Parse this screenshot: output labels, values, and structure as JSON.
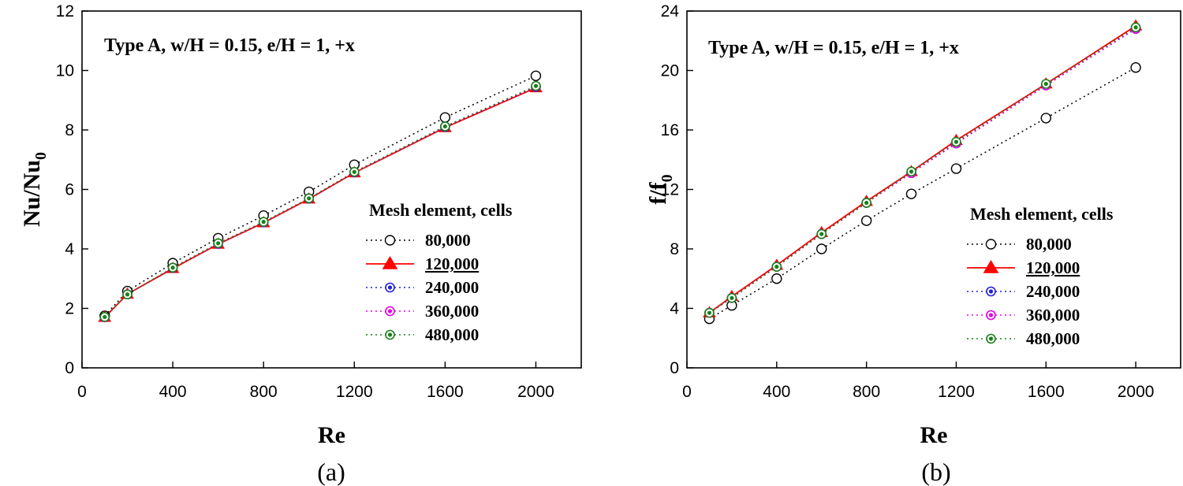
{
  "colors": {
    "s80k": "#000000",
    "s120k": "#ff0000",
    "s240k": "#1f1fd6",
    "s360k": "#e000e0",
    "s480k": "#1a7f1a"
  },
  "chart_data": [
    {
      "type": "line",
      "caption": "(a)",
      "annotation": "Type A, w/H = 0.15, e/H = 1, +x",
      "xlabel": "Re",
      "ylabel": "Nu/Nu",
      "ylabel_sub": "0",
      "xlim": [
        0,
        2200
      ],
      "ylim": [
        0,
        12
      ],
      "xticks": [
        0,
        400,
        800,
        1200,
        1600,
        2000
      ],
      "yticks": [
        0,
        2,
        4,
        6,
        8,
        10,
        12
      ],
      "legend_title": "Mesh element, cells",
      "x": [
        100,
        200,
        400,
        600,
        800,
        1000,
        1200,
        1600,
        2000
      ],
      "series": [
        {
          "name": "80,000",
          "values": [
            1.75,
            2.58,
            3.52,
            4.36,
            5.12,
            5.92,
            6.83,
            8.42,
            9.82
          ]
        },
        {
          "name": "120,000",
          "values": [
            1.7,
            2.48,
            3.34,
            4.16,
            4.88,
            5.68,
            6.56,
            8.08,
            9.42
          ]
        },
        {
          "name": "240,000",
          "values": [
            1.7,
            2.47,
            3.36,
            4.17,
            4.89,
            5.69,
            6.57,
            8.1,
            9.45
          ]
        },
        {
          "name": "360,000",
          "values": [
            1.7,
            2.47,
            3.37,
            4.18,
            4.9,
            5.7,
            6.58,
            8.12,
            9.47
          ]
        },
        {
          "name": "480,000",
          "values": [
            1.71,
            2.47,
            3.37,
            4.19,
            4.91,
            5.7,
            6.59,
            8.12,
            9.48
          ]
        }
      ]
    },
    {
      "type": "line",
      "caption": "(b)",
      "annotation": "Type A, w/H = 0.15, e/H = 1, +x",
      "xlabel": "Re",
      "ylabel": "f/f",
      "ylabel_sub": "0",
      "xlim": [
        0,
        2200
      ],
      "ylim": [
        0,
        24
      ],
      "xticks": [
        0,
        400,
        800,
        1200,
        1600,
        2000
      ],
      "yticks": [
        0,
        4,
        8,
        12,
        16,
        20,
        24
      ],
      "legend_title": "Mesh element, cells",
      "x": [
        100,
        200,
        400,
        600,
        800,
        1000,
        1200,
        1600,
        2000
      ],
      "series": [
        {
          "name": "80,000",
          "values": [
            3.3,
            4.2,
            6.0,
            8.0,
            9.9,
            11.7,
            13.4,
            16.8,
            20.2
          ]
        },
        {
          "name": "120,000",
          "values": [
            3.7,
            4.8,
            6.9,
            9.1,
            11.2,
            13.2,
            15.3,
            19.1,
            23.0
          ]
        },
        {
          "name": "240,000",
          "values": [
            3.7,
            4.7,
            6.8,
            9.0,
            11.1,
            13.1,
            15.1,
            19.0,
            22.8
          ]
        },
        {
          "name": "360,000",
          "values": [
            3.7,
            4.7,
            6.8,
            9.0,
            11.1,
            13.1,
            15.1,
            19.0,
            22.8
          ]
        },
        {
          "name": "480,000",
          "values": [
            3.7,
            4.7,
            6.8,
            9.0,
            11.1,
            13.2,
            15.2,
            19.1,
            22.9
          ]
        }
      ]
    }
  ]
}
